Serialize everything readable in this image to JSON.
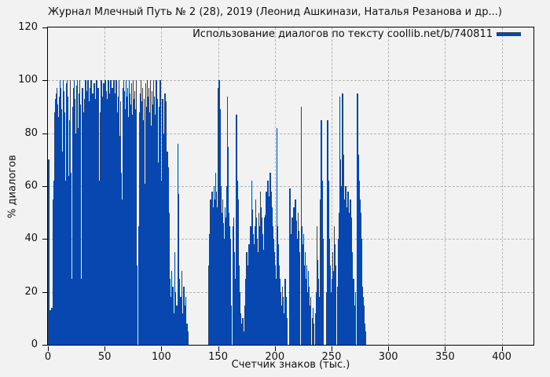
{
  "chart_data": {
    "type": "bar",
    "subtype": "impulses",
    "title": "Журнал Млечный Путь № 2 (28), 2019 (Леонид Ашкинази, Наталья Резанова и др...)",
    "legend": "Использование диалогов по тексту coollib.net/b/740811",
    "xlabel": "Счетчик знаков (тыс.)",
    "ylabel": "% диалогов",
    "xlim": [
      0,
      428
    ],
    "ylim": [
      0,
      120
    ],
    "xticks": [
      0,
      50,
      100,
      150,
      200,
      250,
      300,
      350,
      400
    ],
    "yticks": [
      0,
      20,
      40,
      60,
      80,
      100,
      120
    ],
    "grid": true,
    "legend_position": "top-right-inside",
    "colors": {
      "bar": "#0847b0",
      "background": "#f2f2f2",
      "grid": "#b5b5b5",
      "border": "#000000",
      "text": "#111111"
    },
    "points": [
      [
        0.5,
        70
      ],
      [
        1.2,
        12
      ],
      [
        1.9,
        13
      ],
      [
        2.6,
        12
      ],
      [
        3.3,
        14
      ],
      [
        4.1,
        55
      ],
      [
        4.8,
        62
      ],
      [
        5.5,
        88
      ],
      [
        6.2,
        93
      ],
      [
        6.9,
        95
      ],
      [
        7.6,
        97
      ],
      [
        8.3,
        91
      ],
      [
        9,
        86
      ],
      [
        9.7,
        94
      ],
      [
        10.4,
        100
      ],
      [
        11.1,
        97
      ],
      [
        11.8,
        89
      ],
      [
        12.5,
        73
      ],
      [
        13.2,
        100
      ],
      [
        13.9,
        96
      ],
      [
        14.6,
        88
      ],
      [
        15.3,
        62
      ],
      [
        16,
        99
      ],
      [
        16.7,
        100
      ],
      [
        17.4,
        94
      ],
      [
        18.1,
        64
      ],
      [
        18.8,
        85
      ],
      [
        19.5,
        100
      ],
      [
        20.2,
        65
      ],
      [
        20.9,
        25
      ],
      [
        21.6,
        90
      ],
      [
        22.3,
        97
      ],
      [
        23,
        100
      ],
      [
        23.7,
        93
      ],
      [
        24.4,
        80
      ],
      [
        25.1,
        98
      ],
      [
        25.8,
        100
      ],
      [
        26.5,
        82
      ],
      [
        27.2,
        95
      ],
      [
        27.9,
        100
      ],
      [
        28.6,
        91
      ],
      [
        29.3,
        25
      ],
      [
        30,
        97
      ],
      [
        30.7,
        88
      ],
      [
        32.1,
        93
      ],
      [
        32.8,
        100
      ],
      [
        33.5,
        96
      ],
      [
        34.2,
        85
      ],
      [
        34.9,
        100
      ],
      [
        35.6,
        92
      ],
      [
        36.3,
        78
      ],
      [
        37,
        97
      ],
      [
        37.7,
        100
      ],
      [
        38.4,
        88
      ],
      [
        39.1,
        95
      ],
      [
        39.8,
        70
      ],
      [
        40.5,
        99
      ],
      [
        41.2,
        93
      ],
      [
        41.9,
        86
      ],
      [
        42.6,
        100
      ],
      [
        43.3,
        91
      ],
      [
        44,
        97
      ],
      [
        44.7,
        62
      ],
      [
        45.4,
        35
      ],
      [
        46.1,
        88
      ],
      [
        46.8,
        100
      ],
      [
        47.5,
        94
      ],
      [
        48.2,
        85
      ],
      [
        48.9,
        99
      ],
      [
        49.6,
        92
      ],
      [
        50.3,
        100
      ],
      [
        51,
        96
      ],
      [
        51.7,
        77
      ],
      [
        52.4,
        93
      ],
      [
        53.1,
        100
      ],
      [
        53.8,
        58
      ],
      [
        54.5,
        95
      ],
      [
        55.2,
        100
      ],
      [
        55.9,
        90
      ],
      [
        56.6,
        97
      ],
      [
        57.3,
        84
      ],
      [
        58,
        100
      ],
      [
        58.7,
        95
      ],
      [
        59.4,
        91
      ],
      [
        60.1,
        100
      ],
      [
        60.8,
        88
      ],
      [
        61.5,
        94
      ],
      [
        62.2,
        100
      ],
      [
        62.9,
        79
      ],
      [
        63.6,
        92
      ],
      [
        64.3,
        65
      ],
      [
        65,
        55
      ],
      [
        65.7,
        97
      ],
      [
        66.4,
        100
      ],
      [
        67.1,
        96
      ],
      [
        67.8,
        89
      ],
      [
        68.5,
        100
      ],
      [
        69.2,
        94
      ],
      [
        69.9,
        97
      ],
      [
        70.6,
        86
      ],
      [
        71.3,
        100
      ],
      [
        72,
        95
      ],
      [
        72.7,
        91
      ],
      [
        73.4,
        99
      ],
      [
        74.1,
        87
      ],
      [
        74.8,
        100
      ],
      [
        75.5,
        93
      ],
      [
        76.2,
        96
      ],
      [
        76.9,
        89
      ],
      [
        77.6,
        100
      ],
      [
        78.3,
        30
      ],
      [
        79.7,
        45
      ],
      [
        80.4,
        88
      ],
      [
        81.1,
        95
      ],
      [
        81.8,
        100
      ],
      [
        82.5,
        92
      ],
      [
        83.2,
        97
      ],
      [
        83.9,
        85
      ],
      [
        84.6,
        93
      ],
      [
        85.3,
        61
      ],
      [
        86,
        99
      ],
      [
        86.7,
        90
      ],
      [
        87.4,
        100
      ],
      [
        88.1,
        94
      ],
      [
        88.8,
        97
      ],
      [
        89.5,
        88
      ],
      [
        90.2,
        100
      ],
      [
        90.9,
        83
      ],
      [
        91.6,
        96
      ],
      [
        92.3,
        91
      ],
      [
        93,
        100
      ],
      [
        93.7,
        94
      ],
      [
        94.4,
        87
      ],
      [
        95.1,
        100
      ],
      [
        95.8,
        93
      ],
      [
        96.5,
        69
      ],
      [
        97.2,
        55
      ],
      [
        97.9,
        90
      ],
      [
        98.6,
        100
      ],
      [
        99.3,
        62
      ],
      [
        100,
        40
      ],
      [
        100.7,
        93
      ],
      [
        101.4,
        80
      ],
      [
        102.1,
        52
      ],
      [
        102.8,
        95
      ],
      [
        103.5,
        92
      ],
      [
        104.2,
        60
      ],
      [
        104.9,
        73
      ],
      [
        105.6,
        67
      ],
      [
        106.3,
        50
      ],
      [
        107,
        25
      ],
      [
        107.9,
        18
      ],
      [
        108.8,
        28
      ],
      [
        109.7,
        22
      ],
      [
        110.6,
        12
      ],
      [
        111.5,
        35
      ],
      [
        112.4,
        20
      ],
      [
        113.3,
        15
      ],
      [
        114.2,
        76
      ],
      [
        114.9,
        57
      ],
      [
        115.8,
        25
      ],
      [
        116.7,
        18
      ],
      [
        117.6,
        28
      ],
      [
        118.5,
        12
      ],
      [
        119.4,
        22
      ],
      [
        120.3,
        15
      ],
      [
        121.2,
        18
      ],
      [
        122.1,
        8
      ],
      [
        123,
        5
      ],
      [
        141.8,
        30
      ],
      [
        142.5,
        42
      ],
      [
        143.2,
        55
      ],
      [
        143.9,
        50
      ],
      [
        144.6,
        58
      ],
      [
        145.3,
        52
      ],
      [
        146,
        60
      ],
      [
        146.7,
        55
      ],
      [
        147.4,
        65
      ],
      [
        148.1,
        58
      ],
      [
        148.8,
        52
      ],
      [
        149.5,
        97
      ],
      [
        150.2,
        100
      ],
      [
        150.9,
        100
      ],
      [
        151.6,
        89
      ],
      [
        152.3,
        60
      ],
      [
        153,
        50
      ],
      [
        153.7,
        55
      ],
      [
        154.4,
        46
      ],
      [
        155.1,
        40
      ],
      [
        155.8,
        52
      ],
      [
        156.5,
        48
      ],
      [
        157.2,
        60
      ],
      [
        157.9,
        94
      ],
      [
        158.6,
        75
      ],
      [
        159.3,
        50
      ],
      [
        160,
        45
      ],
      [
        160.7,
        40
      ],
      [
        161.4,
        15
      ],
      [
        162.9,
        45
      ],
      [
        163.6,
        48
      ],
      [
        164.3,
        35
      ],
      [
        165,
        25
      ],
      [
        165.8,
        87
      ],
      [
        166.5,
        62
      ],
      [
        167.2,
        55
      ],
      [
        167.9,
        30
      ],
      [
        168.6,
        20
      ],
      [
        169.3,
        12
      ],
      [
        170,
        8
      ],
      [
        171.5,
        10
      ],
      [
        172.2,
        5
      ],
      [
        173.6,
        15
      ],
      [
        174.3,
        25
      ],
      [
        175,
        35
      ],
      [
        175.7,
        30
      ],
      [
        176.4,
        28
      ],
      [
        177.1,
        38
      ],
      [
        177.8,
        32
      ],
      [
        178.5,
        45
      ],
      [
        179.3,
        62
      ],
      [
        180,
        51
      ],
      [
        180.7,
        42
      ],
      [
        181.4,
        38
      ],
      [
        182.1,
        45
      ],
      [
        182.8,
        55
      ],
      [
        183.5,
        48
      ],
      [
        184.2,
        40
      ],
      [
        184.9,
        35
      ],
      [
        185.6,
        50
      ],
      [
        186.3,
        45
      ],
      [
        187,
        58
      ],
      [
        187.7,
        52
      ],
      [
        188.4,
        48
      ],
      [
        189.1,
        42
      ],
      [
        189.8,
        36
      ],
      [
        190.5,
        48
      ],
      [
        191.6,
        49
      ],
      [
        192.3,
        58
      ],
      [
        193,
        50
      ],
      [
        193.7,
        62
      ],
      [
        194.4,
        56
      ],
      [
        195.1,
        48
      ],
      [
        195.8,
        65
      ],
      [
        196.5,
        58
      ],
      [
        197.2,
        52
      ],
      [
        198,
        45
      ],
      [
        198.7,
        40
      ],
      [
        199.4,
        35
      ],
      [
        200.1,
        30
      ],
      [
        200.8,
        25
      ],
      [
        201.5,
        82
      ],
      [
        202.2,
        45
      ],
      [
        203,
        38
      ],
      [
        203.7,
        30
      ],
      [
        204.4,
        25
      ],
      [
        205.1,
        20
      ],
      [
        205.8,
        15
      ],
      [
        206.5,
        22
      ],
      [
        207.2,
        18
      ],
      [
        208,
        12
      ],
      [
        208.7,
        25
      ],
      [
        209.4,
        18
      ],
      [
        210.1,
        10
      ],
      [
        213.1,
        59
      ],
      [
        214.5,
        42
      ],
      [
        215.2,
        48
      ],
      [
        215.9,
        40
      ],
      [
        216.6,
        52
      ],
      [
        217.3,
        44
      ],
      [
        218,
        55
      ],
      [
        218.7,
        47
      ],
      [
        219.4,
        40
      ],
      [
        220.1,
        50
      ],
      [
        220.8,
        43
      ],
      [
        221.5,
        35
      ],
      [
        222.9,
        90
      ],
      [
        223.6,
        45
      ],
      [
        224.3,
        38
      ],
      [
        225,
        42
      ],
      [
        225.7,
        30
      ],
      [
        226.4,
        35
      ],
      [
        227.1,
        25
      ],
      [
        227.8,
        30
      ],
      [
        228.5,
        20
      ],
      [
        229.2,
        28
      ],
      [
        230,
        22
      ],
      [
        230.7,
        15
      ],
      [
        231.4,
        18
      ],
      [
        232.8,
        10
      ],
      [
        233.5,
        14
      ],
      [
        234.2,
        8
      ],
      [
        235.6,
        12
      ],
      [
        236.3,
        20
      ],
      [
        237,
        45
      ],
      [
        237.7,
        32
      ],
      [
        238.4,
        25
      ],
      [
        239.1,
        18
      ],
      [
        240,
        55
      ],
      [
        240.7,
        85
      ],
      [
        241.4,
        62
      ],
      [
        242.1,
        40
      ],
      [
        245.5,
        20
      ],
      [
        246.4,
        85
      ],
      [
        247.1,
        62
      ],
      [
        247.8,
        40
      ],
      [
        248.5,
        30
      ],
      [
        249.2,
        20
      ],
      [
        250,
        25
      ],
      [
        250.7,
        35
      ],
      [
        251.4,
        28
      ],
      [
        252.1,
        45
      ],
      [
        252.8,
        38
      ],
      [
        253.5,
        30
      ],
      [
        255,
        22
      ],
      [
        255.7,
        40
      ],
      [
        256.4,
        50
      ],
      [
        257.1,
        94
      ],
      [
        257.8,
        70
      ],
      [
        258.5,
        60
      ],
      [
        259.4,
        95
      ],
      [
        260.1,
        72
      ],
      [
        260.8,
        55
      ],
      [
        261.5,
        48
      ],
      [
        262.2,
        60
      ],
      [
        262.9,
        52
      ],
      [
        263.6,
        45
      ],
      [
        264.3,
        58
      ],
      [
        265,
        50
      ],
      [
        265.7,
        42
      ],
      [
        266.4,
        55
      ],
      [
        267.1,
        48
      ],
      [
        267.8,
        35
      ],
      [
        269.2,
        25
      ],
      [
        270,
        15
      ],
      [
        270.7,
        20
      ],
      [
        272.6,
        95
      ],
      [
        273.3,
        72
      ],
      [
        274,
        62
      ],
      [
        274.7,
        55
      ],
      [
        275.4,
        50
      ],
      [
        276.1,
        40
      ],
      [
        276.8,
        22
      ],
      [
        277.5,
        18
      ],
      [
        278.2,
        15
      ],
      [
        279,
        8
      ],
      [
        279.7,
        5
      ]
    ]
  }
}
